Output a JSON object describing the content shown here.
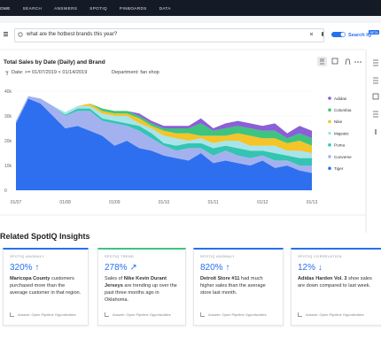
{
  "nav": {
    "items": [
      "OME",
      "SEARCH",
      "ANSWERS",
      "SPOTIQ",
      "PINBOARDS",
      "DATA"
    ]
  },
  "search": {
    "query": "what are the hotbest brands this year?",
    "toggle_label": "Search IQ",
    "badge": "BETA"
  },
  "chart": {
    "type": "area",
    "stacked": true,
    "title": "Total Sales by Date (Daily) and Brand",
    "filters": [
      "Date: >= 01/07/2019 < 01/14/2019",
      "Department: fan shop"
    ],
    "categories": [
      "01/07",
      null,
      null,
      null,
      "01/08",
      null,
      null,
      null,
      "01/09",
      null,
      null,
      null,
      "01/10",
      null,
      null,
      null,
      "01/11",
      null,
      null,
      null,
      "01/12",
      null,
      null,
      null,
      "01/13"
    ],
    "ylim": [
      0,
      40000
    ],
    "yticks": [
      0,
      {
        "value": 10000,
        "label": "10k"
      },
      {
        "value": 20000,
        "label": "20k"
      },
      {
        "value": 30000,
        "label": "30k"
      },
      {
        "value": 40000,
        "label": "40k"
      }
    ],
    "grid": true,
    "legend": "right",
    "series": [
      {
        "name": "Tiger",
        "color": "#2e6ff0",
        "values": [
          27000,
          37000,
          35000,
          30000,
          25000,
          26000,
          24000,
          22000,
          18000,
          20000,
          17000,
          16000,
          14000,
          13000,
          12000,
          15000,
          11000,
          12000,
          11000,
          10000,
          12000,
          9000,
          10000,
          8000,
          7000
        ]
      },
      {
        "name": "Converse",
        "color": "#a3b2ee",
        "values": [
          1000,
          1000,
          2000,
          4000,
          5000,
          6000,
          8000,
          6000,
          9000,
          6000,
          7000,
          5000,
          4000,
          3000,
          5000,
          2000,
          3000,
          4000,
          3000,
          3000,
          2000,
          3000,
          2000,
          2000,
          3000
        ]
      },
      {
        "name": "Puma",
        "color": "#34c4b2",
        "values": [
          0,
          0,
          0,
          0,
          500,
          1000,
          1000,
          1000,
          1000,
          1000,
          2000,
          2000,
          1000,
          2000,
          2000,
          2000,
          3000,
          2000,
          3000,
          3000,
          2000,
          3000,
          2000,
          3000,
          3000
        ]
      },
      {
        "name": "Majestic",
        "color": "#a8e4ea",
        "values": [
          0,
          0,
          0,
          0,
          1000,
          1000,
          1000,
          2000,
          2000,
          3000,
          1000,
          2000,
          3000,
          3000,
          1000,
          2000,
          2000,
          2000,
          3000,
          2000,
          2000,
          3000,
          2000,
          3000,
          2000
        ]
      },
      {
        "name": "Nike",
        "color": "#f4c428",
        "values": [
          0,
          0,
          0,
          0,
          0,
          0,
          1000,
          1000,
          1000,
          1000,
          2000,
          1000,
          2000,
          2000,
          3000,
          1000,
          3000,
          2000,
          3000,
          4000,
          3000,
          3000,
          3000,
          4000,
          3000
        ]
      },
      {
        "name": "Columbia",
        "color": "#3ec47f",
        "values": [
          0,
          0,
          0,
          0,
          0,
          0,
          0,
          1000,
          1000,
          1000,
          1000,
          1000,
          1000,
          2000,
          2000,
          5000,
          2000,
          3000,
          3000,
          3000,
          3000,
          3000,
          2000,
          3000,
          3000
        ]
      },
      {
        "name": "Adidas",
        "color": "#8b5fd6",
        "values": [
          0,
          0,
          0,
          0,
          0,
          0,
          0,
          0,
          0,
          0,
          1000,
          1000,
          1000,
          1000,
          1000,
          2000,
          1000,
          2000,
          2000,
          2000,
          2000,
          3000,
          2000,
          3000,
          3000
        ]
      }
    ]
  },
  "insights": {
    "title": "Related SpotIQ Insights",
    "cards": [
      {
        "kind": "SPOTIQ ANOMALY",
        "accent": "#2770ef",
        "metric": "320%",
        "arrow": "↑",
        "parts": [
          {
            "text": "Maricopa County",
            "bold": true
          },
          {
            "text": " customers purchased more than the average customer in that region.",
            "bold": false
          }
        ],
        "footer": "Answer: Open Pipeline Opportunities"
      },
      {
        "kind": "SPOTIQ TREND",
        "accent": "#3ec47f",
        "metric": "278%",
        "arrow": "↗",
        "parts": [
          {
            "text": "Sales of ",
            "bold": false
          },
          {
            "text": "Nike Kevin Durant Jerseys",
            "bold": true
          },
          {
            "text": " are trending up over the past three months ago in Oklahoma.",
            "bold": false
          }
        ],
        "footer": "Answer: Open Pipeline Opportunities"
      },
      {
        "kind": "SPOTIQ ANOMALY",
        "accent": "#2770ef",
        "metric": "820%",
        "arrow": "↑",
        "parts": [
          {
            "text": "Detroit Store #11",
            "bold": true
          },
          {
            "text": " had much higher sales than the average store last month.",
            "bold": false
          }
        ],
        "footer": "Answer: Open Pipeline Opportunities"
      },
      {
        "kind": "SPOTIQ CORRELATION",
        "accent": "#2770ef",
        "metric": "12%",
        "arrow": "↓",
        "parts": [
          {
            "text": "Adidas Harden Vol. 3",
            "bold": true
          },
          {
            "text": " shoe sales are down compared to last week.",
            "bold": false
          }
        ],
        "footer": "Answer: Open Pipeline Opportunities"
      }
    ]
  }
}
